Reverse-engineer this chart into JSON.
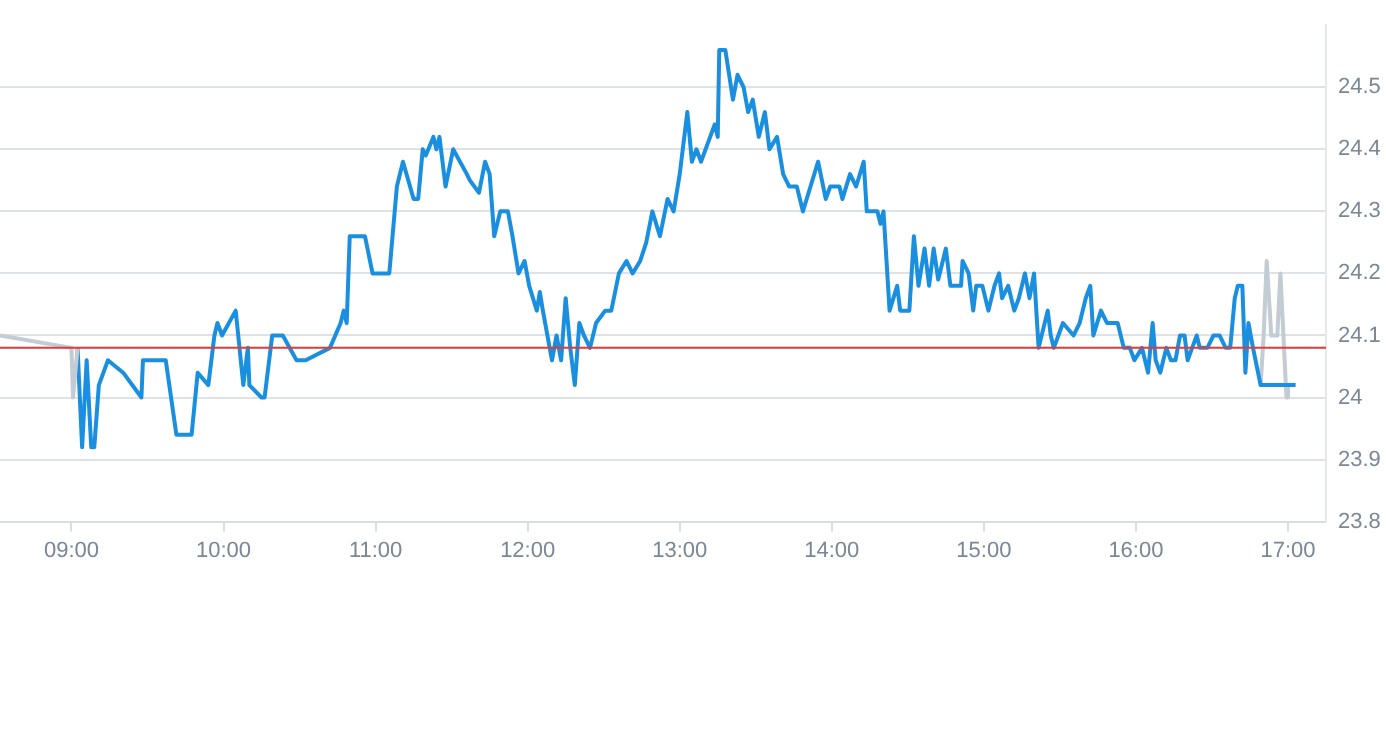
{
  "chart_data": {
    "type": "line",
    "marker": "none",
    "line_style": "solid",
    "grid": "y",
    "legend": false,
    "xlim": [
      8.53,
      17.25
    ],
    "ylim": [
      23.8,
      24.6
    ],
    "xticks": [
      {
        "value": 9,
        "label": "09:00"
      },
      {
        "value": 10,
        "label": "10:00"
      },
      {
        "value": 11,
        "label": "11:00"
      },
      {
        "value": 12,
        "label": "12:00"
      },
      {
        "value": 13,
        "label": "13:00"
      },
      {
        "value": 14,
        "label": "14:00"
      },
      {
        "value": 15,
        "label": "15:00"
      },
      {
        "value": 16,
        "label": "16:00"
      },
      {
        "value": 17,
        "label": "17:00"
      }
    ],
    "yticks": [
      23.8,
      23.9,
      24,
      24.1,
      24.2,
      24.3,
      24.4,
      24.5
    ],
    "ref_lines": [
      {
        "axis": "y",
        "value": 24.08,
        "color": "#e03a3a"
      }
    ],
    "series": [
      {
        "color": "#c3cbd3",
        "x": [
          8.53,
          9.0,
          9.01,
          9.04
        ],
        "values": [
          24.1,
          24.08,
          24.0,
          24.08
        ]
      },
      {
        "color": "#1a8fe0",
        "x": [
          9.04,
          9.07,
          9.1,
          9.13,
          9.15,
          9.18,
          9.24,
          9.34,
          9.46,
          9.47,
          9.62,
          9.69,
          9.79,
          9.83,
          9.9,
          9.94,
          9.96,
          9.99,
          10.08,
          10.13,
          10.16,
          10.17,
          10.25,
          10.27,
          10.32,
          10.39,
          10.48,
          10.54,
          10.7,
          10.77,
          10.79,
          10.81,
          10.83,
          10.93,
          10.98,
          11.09,
          11.14,
          11.18,
          11.25,
          11.28,
          11.31,
          11.33,
          11.38,
          11.4,
          11.42,
          11.46,
          11.51,
          11.6,
          11.62,
          11.68,
          11.72,
          11.75,
          11.78,
          11.82,
          11.87,
          11.9,
          11.94,
          11.98,
          12.01,
          12.06,
          12.08,
          12.1,
          12.16,
          12.19,
          12.22,
          12.25,
          12.28,
          12.31,
          12.34,
          12.37,
          12.41,
          12.45,
          12.51,
          12.55,
          12.6,
          12.65,
          12.69,
          12.74,
          12.78,
          12.82,
          12.87,
          12.92,
          12.96,
          13.0,
          13.05,
          13.08,
          13.11,
          13.14,
          13.2,
          13.23,
          13.25,
          13.26,
          13.3,
          13.35,
          13.38,
          13.42,
          13.45,
          13.48,
          13.52,
          13.56,
          13.59,
          13.64,
          13.68,
          13.72,
          13.77,
          13.81,
          13.86,
          13.91,
          13.96,
          13.99,
          14.05,
          14.07,
          14.12,
          14.16,
          14.21,
          14.23,
          14.3,
          14.32,
          14.34,
          14.38,
          14.43,
          14.45,
          14.51,
          14.54,
          14.57,
          14.61,
          14.64,
          14.67,
          14.7,
          14.75,
          14.78,
          14.85,
          14.86,
          14.9,
          14.93,
          14.95,
          14.99,
          15.03,
          15.07,
          15.1,
          15.12,
          15.16,
          15.2,
          15.23,
          15.27,
          15.3,
          15.33,
          15.36,
          15.42,
          15.44,
          15.46,
          15.49,
          15.52,
          15.59,
          15.63,
          15.67,
          15.7,
          15.72,
          15.77,
          15.81,
          15.88,
          15.92,
          15.96,
          15.99,
          16.04,
          16.08,
          16.11,
          16.13,
          16.16,
          16.2,
          16.23,
          16.26,
          16.29,
          16.32,
          16.34,
          16.37,
          16.4,
          16.42,
          16.47,
          16.51,
          16.55,
          16.59,
          16.62,
          16.65,
          16.67,
          16.7,
          16.72,
          16.74,
          16.77,
          16.82,
          16.95,
          17.05
        ],
        "values": [
          24.08,
          23.92,
          24.06,
          23.92,
          23.92,
          24.02,
          24.06,
          24.04,
          24.0,
          24.06,
          24.06,
          23.94,
          23.94,
          24.04,
          24.02,
          24.1,
          24.12,
          24.1,
          24.14,
          24.02,
          24.08,
          24.02,
          24.0,
          24.0,
          24.1,
          24.1,
          24.06,
          24.06,
          24.08,
          24.12,
          24.14,
          24.12,
          24.26,
          24.26,
          24.2,
          24.2,
          24.34,
          24.38,
          24.32,
          24.32,
          24.4,
          24.39,
          24.42,
          24.4,
          24.42,
          24.34,
          24.4,
          24.36,
          24.35,
          24.33,
          24.38,
          24.36,
          24.26,
          24.3,
          24.3,
          24.26,
          24.2,
          24.22,
          24.18,
          24.14,
          24.17,
          24.14,
          24.06,
          24.1,
          24.06,
          24.16,
          24.08,
          24.02,
          24.12,
          24.1,
          24.08,
          24.12,
          24.14,
          24.14,
          24.2,
          24.22,
          24.2,
          24.22,
          24.25,
          24.3,
          24.26,
          24.32,
          24.3,
          24.36,
          24.46,
          24.38,
          24.4,
          24.38,
          24.42,
          24.44,
          24.42,
          24.56,
          24.56,
          24.48,
          24.52,
          24.5,
          24.46,
          24.48,
          24.42,
          24.46,
          24.4,
          24.42,
          24.36,
          24.34,
          24.34,
          24.3,
          24.34,
          24.38,
          24.32,
          24.34,
          24.34,
          24.32,
          24.36,
          24.34,
          24.38,
          24.3,
          24.3,
          24.28,
          24.3,
          24.14,
          24.18,
          24.14,
          24.14,
          24.26,
          24.18,
          24.24,
          24.18,
          24.24,
          24.19,
          24.24,
          24.18,
          24.18,
          24.22,
          24.2,
          24.14,
          24.18,
          24.18,
          24.14,
          24.18,
          24.2,
          24.16,
          24.18,
          24.14,
          24.16,
          24.2,
          24.16,
          24.2,
          24.08,
          24.14,
          24.1,
          24.08,
          24.1,
          24.12,
          24.1,
          24.12,
          24.16,
          24.18,
          24.1,
          24.14,
          24.12,
          24.12,
          24.08,
          24.08,
          24.06,
          24.08,
          24.04,
          24.12,
          24.06,
          24.04,
          24.08,
          24.06,
          24.06,
          24.1,
          24.1,
          24.06,
          24.08,
          24.1,
          24.08,
          24.08,
          24.1,
          24.1,
          24.08,
          24.08,
          24.16,
          24.18,
          24.18,
          24.04,
          24.12,
          24.08,
          24.02,
          24.02,
          24.02
        ]
      },
      {
        "color": "#c3cbd3",
        "x": [
          16.82,
          16.84,
          16.86,
          16.89,
          16.93,
          16.95,
          16.99,
          17.0
        ],
        "values": [
          24.02,
          24.1,
          24.22,
          24.1,
          24.1,
          24.2,
          24.0,
          24.02
        ]
      }
    ]
  }
}
